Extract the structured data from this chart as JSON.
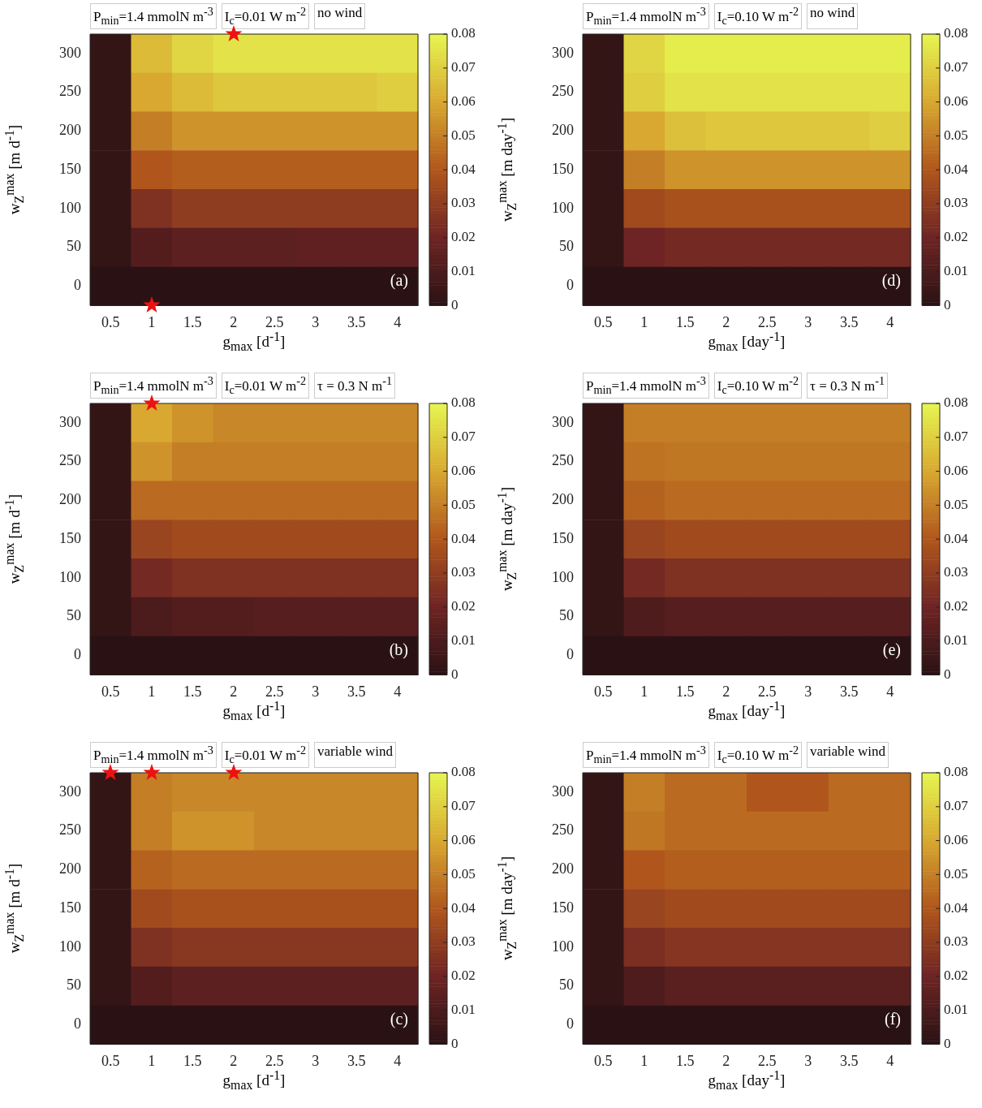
{
  "chart_data": [
    {
      "type": "heatmap",
      "xlabel": "g$_{max}$ [d$^{-1}$]",
      "ylabel": "w$_{Z}$$^{max}$ [m d$^{-1}$]",
      "categories": [
        "0.5",
        "1",
        "1.5",
        "2",
        "2.5",
        "3",
        "3.5",
        "4"
      ],
      "y_categories": [
        "300",
        "250",
        "200",
        "150",
        "100",
        "50",
        "0"
      ],
      "cells": [
        [
          0.003,
          0.065,
          0.072,
          0.075,
          0.075,
          0.075,
          0.075,
          0.075
        ],
        [
          0.003,
          0.06,
          0.065,
          0.068,
          0.068,
          0.068,
          0.068,
          0.07
        ],
        [
          0.003,
          0.05,
          0.055,
          0.055,
          0.055,
          0.055,
          0.055,
          0.055
        ],
        [
          0.003,
          0.04,
          0.042,
          0.042,
          0.042,
          0.042,
          0.042,
          0.042
        ],
        [
          0.003,
          0.025,
          0.03,
          0.03,
          0.03,
          0.03,
          0.03,
          0.03
        ],
        [
          0.003,
          0.012,
          0.015,
          0.015,
          0.015,
          0.016,
          0.016,
          0.016
        ],
        [
          0,
          0,
          0,
          0,
          0,
          0,
          0,
          0
        ]
      ],
      "clim": [
        0,
        0.08
      ],
      "cticks": [
        0,
        0.01,
        0.02,
        0.03,
        0.04,
        0.05,
        0.06,
        0.07,
        0.08
      ],
      "annotations": [
        "P$_{min}$=1.4 mmolN m$^{-3}$",
        "I$_{c}$=0.01 W m$^{-2}$",
        "no wind",
        "(a)"
      ]
    },
    {
      "type": "heatmap",
      "xlabel": "g$_{max}$ [d$^{-1}$]",
      "ylabel": "w$_{Z}$$^{max}$ [m d$^{-1}$]",
      "categories": [
        "0.5",
        "1",
        "1.5",
        "2",
        "2.5",
        "3",
        "3.5",
        "4"
      ],
      "y_categories": [
        "300",
        "250",
        "200",
        "150",
        "100",
        "50",
        "0"
      ],
      "cells": [
        [
          0.003,
          0.06,
          0.055,
          0.052,
          0.052,
          0.052,
          0.052,
          0.052
        ],
        [
          0.003,
          0.055,
          0.05,
          0.05,
          0.05,
          0.05,
          0.05,
          0.05
        ],
        [
          0.003,
          0.045,
          0.045,
          0.045,
          0.045,
          0.045,
          0.045,
          0.045
        ],
        [
          0.003,
          0.033,
          0.035,
          0.035,
          0.035,
          0.035,
          0.035,
          0.035
        ],
        [
          0.003,
          0.022,
          0.025,
          0.025,
          0.025,
          0.025,
          0.025,
          0.025
        ],
        [
          0.003,
          0.01,
          0.012,
          0.012,
          0.013,
          0.013,
          0.013,
          0.013
        ],
        [
          0,
          0,
          0,
          0,
          0,
          0,
          0,
          0
        ]
      ],
      "clim": [
        0,
        0.08
      ],
      "cticks": [
        0,
        0.01,
        0.02,
        0.03,
        0.04,
        0.05,
        0.06,
        0.07,
        0.08
      ],
      "annotations": [
        "P$_{min}$=1.4 mmolN m$^{-3}$",
        "I$_{c}$=0.01 W m$^{-2}$",
        "τ = 0.3 N m$^{-1}$",
        "(b)"
      ]
    },
    {
      "type": "heatmap",
      "xlabel": "g$_{max}$ [d$^{-1}$]",
      "ylabel": "w$_{Z}$$^{max}$ [m d$^{-1}$]",
      "categories": [
        "0.5",
        "1",
        "1.5",
        "2",
        "2.5",
        "3",
        "3.5",
        "4"
      ],
      "y_categories": [
        "300",
        "250",
        "200",
        "150",
        "100",
        "50",
        "0"
      ],
      "cells": [
        [
          0.003,
          0.05,
          0.052,
          0.052,
          0.052,
          0.052,
          0.052,
          0.052
        ],
        [
          0.003,
          0.05,
          0.055,
          0.055,
          0.052,
          0.052,
          0.052,
          0.052
        ],
        [
          0.003,
          0.043,
          0.045,
          0.045,
          0.045,
          0.045,
          0.045,
          0.045
        ],
        [
          0.003,
          0.035,
          0.038,
          0.038,
          0.038,
          0.038,
          0.038,
          0.038
        ],
        [
          0.003,
          0.025,
          0.028,
          0.028,
          0.028,
          0.028,
          0.028,
          0.028
        ],
        [
          0.003,
          0.012,
          0.015,
          0.015,
          0.015,
          0.015,
          0.015,
          0.015
        ],
        [
          0,
          0,
          0,
          0,
          0,
          0,
          0,
          0
        ]
      ],
      "clim": [
        0,
        0.08
      ],
      "cticks": [
        0,
        0.01,
        0.02,
        0.03,
        0.04,
        0.05,
        0.06,
        0.07,
        0.08
      ],
      "annotations": [
        "P$_{min}$=1.4 mmolN m$^{-3}$",
        "I$_{c}$=0.01 W m$^{-2}$",
        "variable wind",
        "(c)"
      ]
    },
    {
      "type": "heatmap",
      "xlabel": "g$_{max}$ [day$^{-1}$]",
      "ylabel": "w$_{Z}$$^{max}$ [m day$^{-1}$]",
      "categories": [
        "0.5",
        "1",
        "1.5",
        "2",
        "2.5",
        "3",
        "3.5",
        "4"
      ],
      "y_categories": [
        "300",
        "250",
        "200",
        "150",
        "100",
        "50",
        "0"
      ],
      "cells": [
        [
          0.003,
          0.072,
          0.078,
          0.078,
          0.078,
          0.078,
          0.078,
          0.078
        ],
        [
          0.003,
          0.07,
          0.075,
          0.075,
          0.075,
          0.075,
          0.075,
          0.075
        ],
        [
          0.003,
          0.06,
          0.066,
          0.068,
          0.068,
          0.068,
          0.068,
          0.07
        ],
        [
          0.003,
          0.05,
          0.055,
          0.055,
          0.055,
          0.055,
          0.055,
          0.055
        ],
        [
          0.003,
          0.035,
          0.038,
          0.038,
          0.038,
          0.038,
          0.038,
          0.038
        ],
        [
          0.003,
          0.02,
          0.022,
          0.022,
          0.022,
          0.022,
          0.022,
          0.022
        ],
        [
          0,
          0,
          0,
          0,
          0,
          0,
          0,
          0
        ]
      ],
      "clim": [
        0,
        0.08
      ],
      "cticks": [
        0,
        0.01,
        0.02,
        0.03,
        0.04,
        0.05,
        0.06,
        0.07,
        0.08
      ],
      "annotations": [
        "P$_{min}$=1.4 mmolN m$^{-3}$",
        "I$_{c}$=0.10 W m$^{-2}$",
        "no wind",
        "(d)"
      ]
    },
    {
      "type": "heatmap",
      "xlabel": "g$_{max}$ [day$^{-1}$]",
      "ylabel": "w$_{Z}$$^{max}$ [m day$^{-1}$]",
      "categories": [
        "0.5",
        "1",
        "1.5",
        "2",
        "2.5",
        "3",
        "3.5",
        "4"
      ],
      "y_categories": [
        "300",
        "250",
        "200",
        "150",
        "100",
        "50",
        "0"
      ],
      "cells": [
        [
          0.003,
          0.05,
          0.05,
          0.05,
          0.05,
          0.05,
          0.05,
          0.05
        ],
        [
          0.003,
          0.047,
          0.048,
          0.048,
          0.048,
          0.048,
          0.048,
          0.048
        ],
        [
          0.003,
          0.043,
          0.045,
          0.045,
          0.045,
          0.045,
          0.045,
          0.045
        ],
        [
          0.003,
          0.033,
          0.035,
          0.035,
          0.035,
          0.035,
          0.035,
          0.035
        ],
        [
          0.003,
          0.022,
          0.025,
          0.025,
          0.025,
          0.025,
          0.025,
          0.025
        ],
        [
          0.003,
          0.011,
          0.013,
          0.013,
          0.013,
          0.013,
          0.013,
          0.013
        ],
        [
          0,
          0,
          0,
          0,
          0,
          0,
          0,
          0
        ]
      ],
      "clim": [
        0,
        0.08
      ],
      "cticks": [
        0,
        0.01,
        0.02,
        0.03,
        0.04,
        0.05,
        0.06,
        0.07,
        0.08
      ],
      "annotations": [
        "P$_{min}$=1.4 mmolN m$^{-3}$",
        "I$_{c}$=0.10 W m$^{-2}$",
        "τ = 0.3 N m$^{-1}$",
        "(e)"
      ]
    },
    {
      "type": "heatmap",
      "xlabel": "g$_{max}$ [day$^{-1}$]",
      "ylabel": "w$_{Z}$$^{max}$ [m day$^{-1}$]",
      "categories": [
        "0.5",
        "1",
        "1.5",
        "2",
        "2.5",
        "3",
        "3.5",
        "4"
      ],
      "y_categories": [
        "300",
        "250",
        "200",
        "150",
        "100",
        "50",
        "0"
      ],
      "cells": [
        [
          0.003,
          0.05,
          0.045,
          0.045,
          0.04,
          0.04,
          0.045,
          0.045
        ],
        [
          0.003,
          0.048,
          0.045,
          0.045,
          0.045,
          0.045,
          0.045,
          0.045
        ],
        [
          0.003,
          0.04,
          0.042,
          0.042,
          0.042,
          0.042,
          0.042,
          0.042
        ],
        [
          0.003,
          0.033,
          0.035,
          0.035,
          0.035,
          0.035,
          0.035,
          0.035
        ],
        [
          0.003,
          0.024,
          0.027,
          0.027,
          0.027,
          0.027,
          0.027,
          0.027
        ],
        [
          0.003,
          0.011,
          0.014,
          0.014,
          0.014,
          0.014,
          0.014,
          0.014
        ],
        [
          0,
          0,
          0,
          0,
          0,
          0,
          0,
          0
        ]
      ],
      "clim": [
        0,
        0.08
      ],
      "cticks": [
        0,
        0.01,
        0.02,
        0.03,
        0.04,
        0.05,
        0.06,
        0.07,
        0.08
      ],
      "annotations": [
        "P$_{min}$=1.4 mmolN m$^{-3}$",
        "I$_{c}$=0.10 W m$^{-2}$",
        "variable wind",
        "(f)"
      ]
    }
  ]
}
